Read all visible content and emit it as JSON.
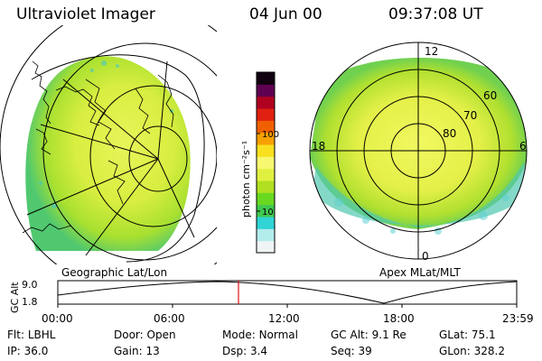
{
  "header": {
    "title": "Ultraviolet Imager",
    "date": "04 Jun 00",
    "time": "09:37:08 UT"
  },
  "left_map": {
    "caption": "Geographic Lat/Lon"
  },
  "right_map": {
    "caption": "Apex MLat/MLT",
    "lat_labels": [
      "60",
      "70",
      "80"
    ],
    "mlt_labels": {
      "top": "12",
      "left": "18",
      "right": "6",
      "bottom": "0"
    }
  },
  "colorbar": {
    "unit_label": "photon cm⁻²s⁻¹",
    "ticks": [
      "100",
      "10"
    ],
    "colors": [
      "#f0f4f4",
      "#b4ecec",
      "#30d4d4",
      "#40c850",
      "#68d820",
      "#b0e020",
      "#e0f040",
      "#f8f870",
      "#f8e020",
      "#f8a000",
      "#f06000",
      "#e02010",
      "#b00020",
      "#600050",
      "#100010"
    ]
  },
  "altitude_plot": {
    "ylabel": "GC Alt",
    "y_ticks": [
      "9.0",
      "1.8"
    ],
    "x_ticks": [
      "00:00",
      "06:00",
      "12:00",
      "18:00",
      "23:59"
    ]
  },
  "footer": {
    "row1": [
      {
        "key": "Flt:",
        "val": "LBHL"
      },
      {
        "key": "Door:",
        "val": "Open"
      },
      {
        "key": "Mode:",
        "val": "Normal"
      },
      {
        "key": "GC Alt:",
        "val": "9.1 Re"
      },
      {
        "key": "GLat:",
        "val": "75.1"
      }
    ],
    "row2": [
      {
        "key": "IP:",
        "val": "36.0"
      },
      {
        "key": "Gain:",
        "val": "13"
      },
      {
        "key": "Dsp:",
        "val": "3.4"
      },
      {
        "key": "Seq:",
        "val": "39"
      },
      {
        "key": "GLon:",
        "val": "328.2"
      }
    ]
  }
}
